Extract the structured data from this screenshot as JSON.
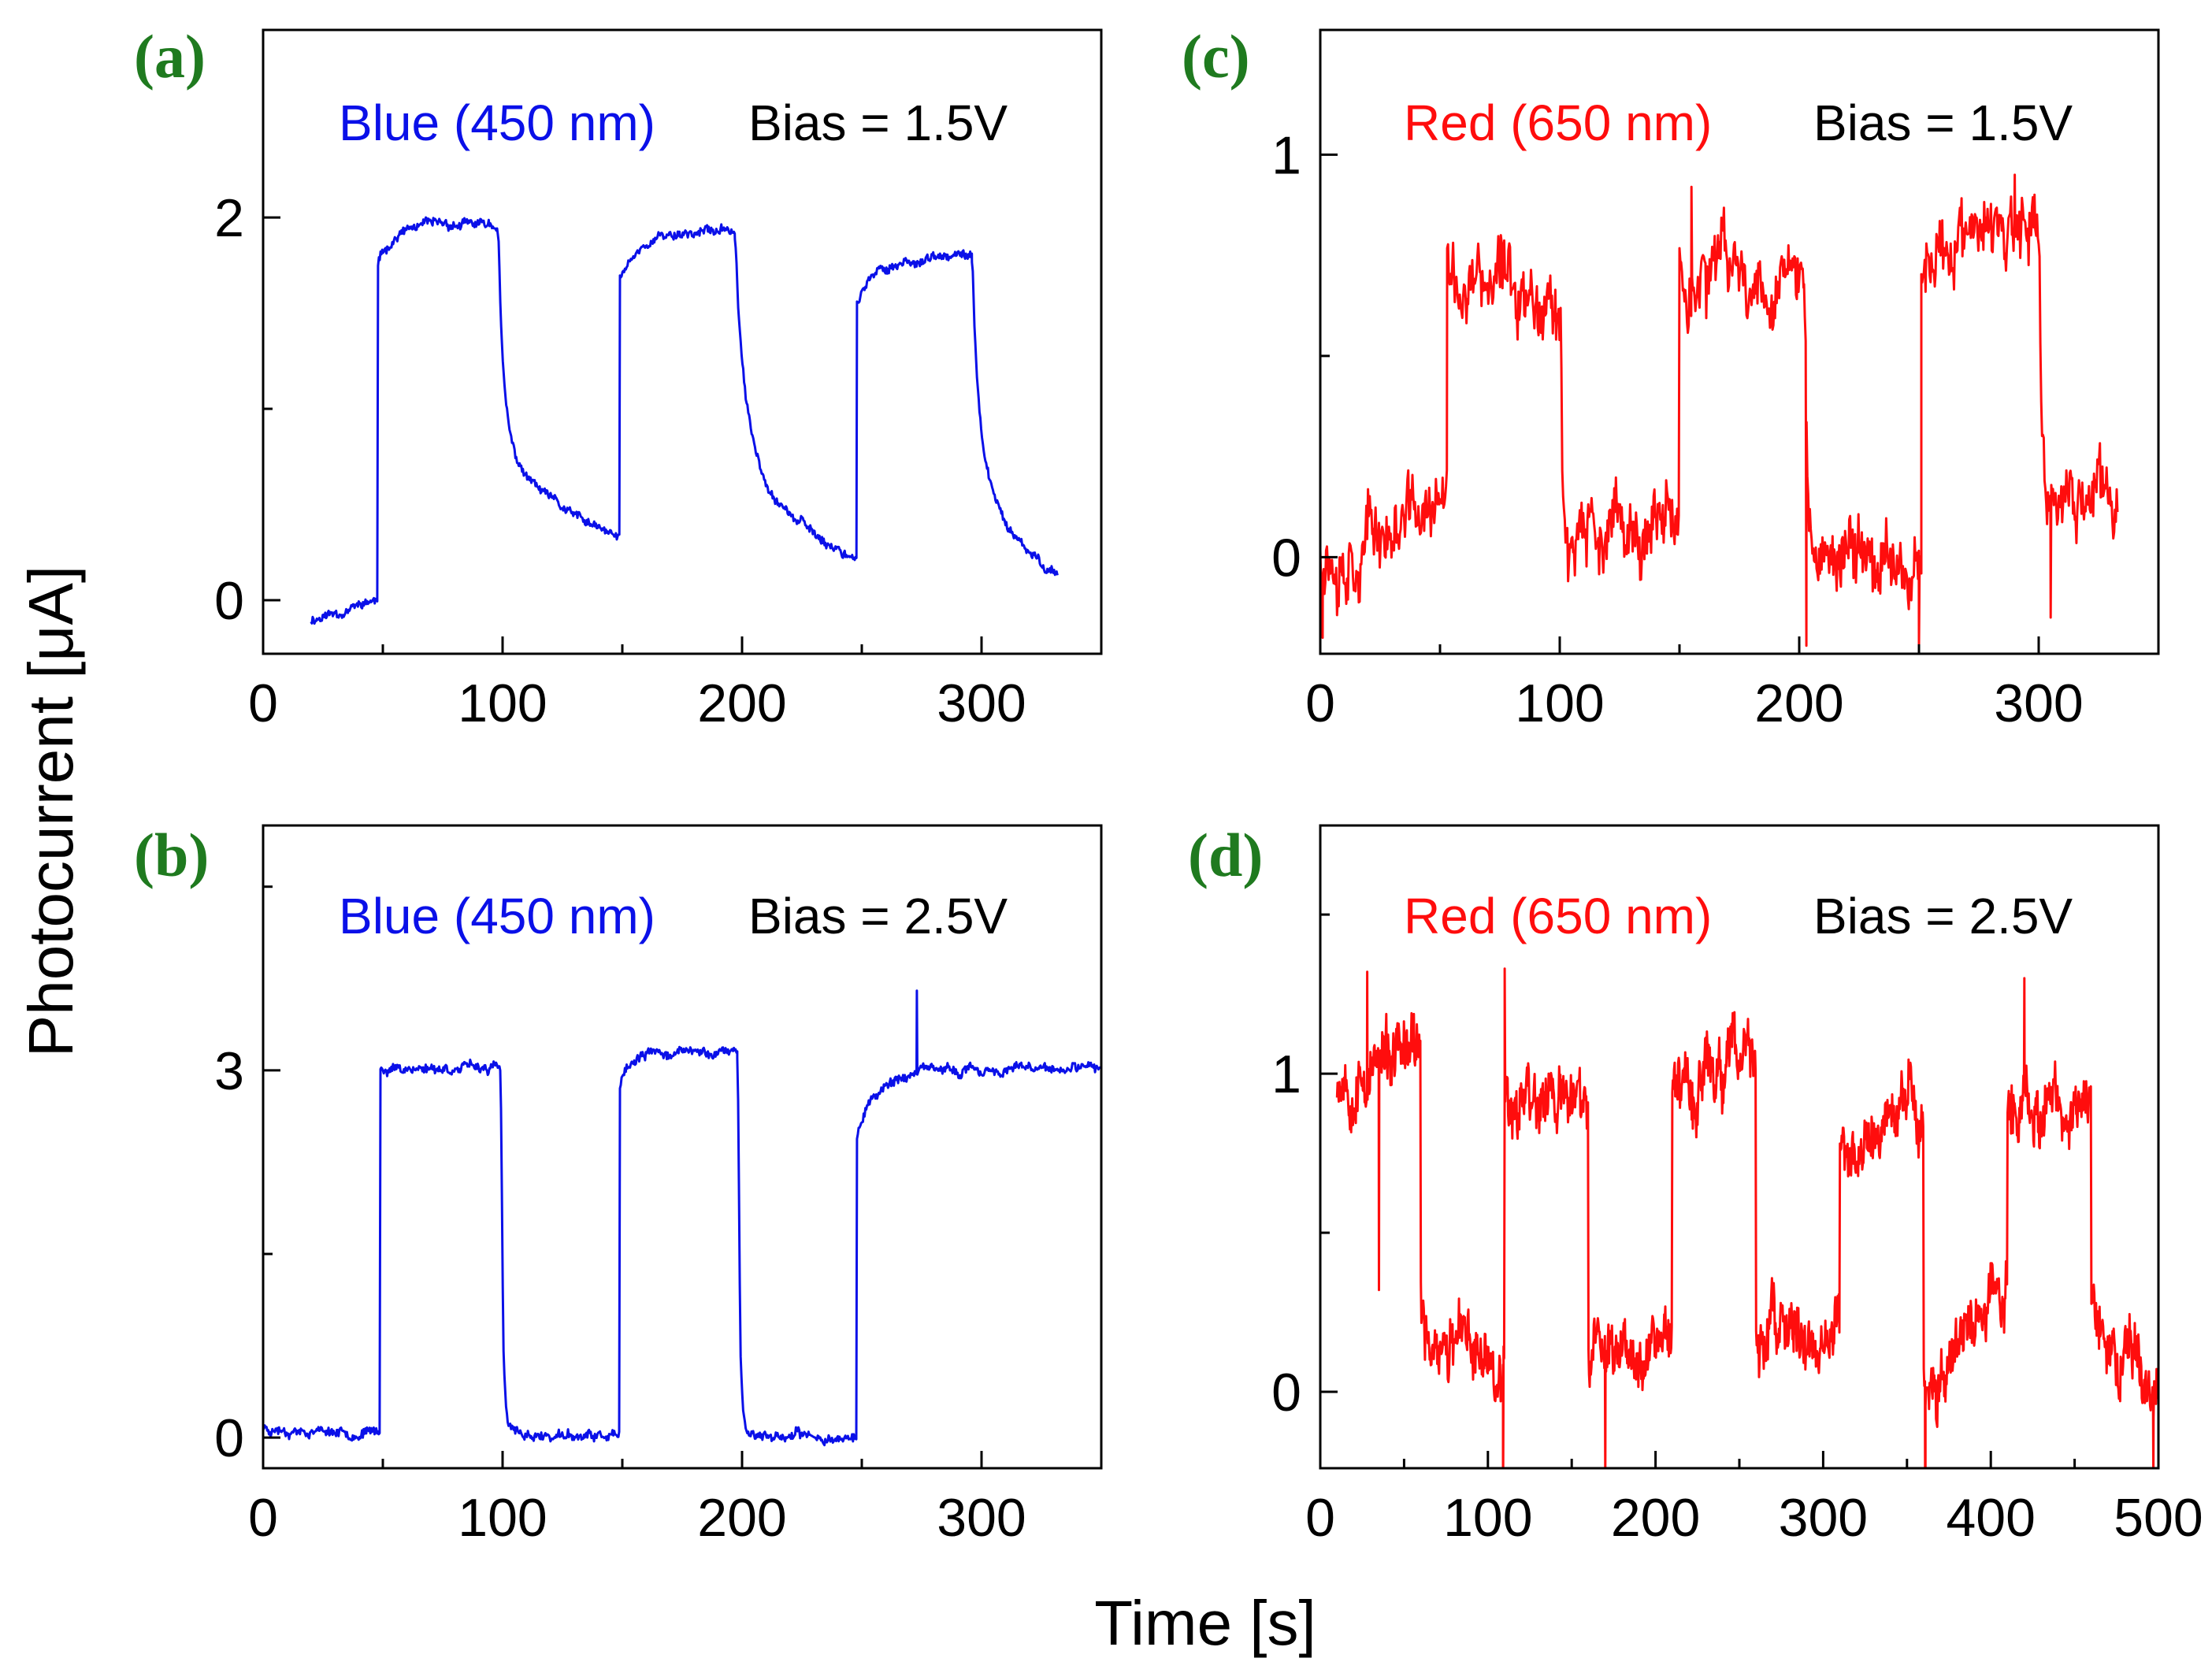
{
  "figure": {
    "ylabel": "Photocurrent [μA]",
    "xlabel": "Time [s]"
  },
  "colors": {
    "blue": "#0a10e8",
    "red": "#ff0d0d",
    "panel_label": "#1f7a1f",
    "axis": "#000000"
  },
  "chart_data": [
    {
      "id": "a",
      "panel_label": "(a)",
      "type": "line",
      "legend_wavelength": "Blue (450 nm)",
      "legend_bias": "Bias = 1.5V",
      "series_color": "blue",
      "xlim": [
        0,
        350
      ],
      "ylim": [
        -0.28,
        2.98
      ],
      "xticks": [
        0,
        100,
        200,
        300
      ],
      "xminor": [
        50,
        150,
        250
      ],
      "yticks": [
        0,
        2
      ],
      "yminor": [
        1
      ],
      "noise": 0.022,
      "seed": 11,
      "segments": [
        {
          "t0": 20,
          "t1": 48,
          "type": "flat",
          "v0": -0.1,
          "v1": 0.0
        },
        {
          "t0": 48,
          "t1": 98,
          "type": "rise",
          "base": 0.0,
          "target": 1.96,
          "a": 0.78,
          "jump": 0.89,
          "tau": 6
        },
        {
          "t0": 98,
          "t1": 149,
          "type": "fall",
          "start": 1.93,
          "drop_to": 0.82,
          "target": 0.05,
          "a": 0.62,
          "tau1": 2.5,
          "tau2": 40
        },
        {
          "t0": 149,
          "t1": 197,
          "type": "rise",
          "base": 0.06,
          "target": 1.93,
          "a": 0.8,
          "jump": 0.86,
          "tau": 8
        },
        {
          "t0": 197,
          "t1": 248,
          "type": "fall",
          "start": 1.9,
          "drop_to": 0.9,
          "target": -0.02,
          "a": 0.55,
          "tau1": 4,
          "tau2": 30
        },
        {
          "t0": 248,
          "t1": 296,
          "type": "rise",
          "base": -0.02,
          "target": 1.79,
          "a": 0.83,
          "jump": 0.88,
          "tau": 9
        },
        {
          "t0": 296,
          "t1": 332,
          "type": "fall",
          "start": 1.77,
          "drop_to": 0.9,
          "target": -0.02,
          "a": 0.5,
          "tau1": 3,
          "tau2": 15
        }
      ],
      "spikes": []
    },
    {
      "id": "b",
      "panel_label": "(b)",
      "type": "line",
      "legend_wavelength": "Blue (450 nm)",
      "legend_bias": "Bias = 2.5V",
      "series_color": "blue",
      "xlim": [
        0,
        350
      ],
      "ylim": [
        -0.25,
        5.0
      ],
      "xticks": [
        0,
        100,
        200,
        300
      ],
      "xminor": [
        50,
        150,
        250
      ],
      "yticks": [
        0,
        3
      ],
      "yminor": [
        1.5,
        4.5
      ],
      "noise": 0.035,
      "seed": 23,
      "segments": [
        {
          "t0": 0,
          "t1": 49,
          "type": "flat",
          "v0": 0.08,
          "v1": 0.04
        },
        {
          "t0": 49,
          "t1": 99,
          "type": "rise",
          "base": 0.05,
          "target": 3.02,
          "a": 1.0,
          "jump": 0.99,
          "tau": 1
        },
        {
          "t0": 99,
          "t1": 149,
          "type": "fall",
          "start": 3.0,
          "drop_to": 0.05,
          "target": 0.0,
          "a": 0.0,
          "tau1": 1,
          "tau2": 10
        },
        {
          "t0": 149,
          "t1": 198,
          "type": "rise",
          "base": 0.05,
          "target": 3.15,
          "a": 0.88,
          "jump": 0.9,
          "tau": 5
        },
        {
          "t0": 198,
          "t1": 248,
          "type": "fall",
          "start": 3.12,
          "drop_to": 0.05,
          "target": 0.0,
          "a": 0.0,
          "tau1": 1,
          "tau2": 10
        },
        {
          "t0": 248,
          "t1": 350,
          "type": "rise",
          "base": 0.05,
          "target": 3.0,
          "a": 0.85,
          "jump": 0.82,
          "tau": 8
        }
      ],
      "spikes": [
        {
          "t": 273,
          "v": 3.65
        }
      ]
    },
    {
      "id": "c",
      "panel_label": "(c)",
      "type": "line",
      "legend_wavelength": "Red (650 nm)",
      "legend_bias": "Bias = 1.5V",
      "series_color": "red",
      "xlim": [
        0,
        350
      ],
      "ylim": [
        -0.24,
        1.31
      ],
      "xticks": [
        0,
        100,
        200,
        300
      ],
      "xminor": [
        50,
        150,
        250
      ],
      "yticks": [
        0,
        1
      ],
      "yminor": [
        0.5
      ],
      "noise": 0.075,
      "seed": 37,
      "segments": [
        {
          "t0": 0,
          "t1": 53,
          "type": "flat",
          "v0": 0.02,
          "v1": 0.12
        },
        {
          "t0": 53,
          "t1": 100,
          "type": "rise",
          "base": 0.1,
          "target": 0.67,
          "a": 1.0,
          "jump": 0.98,
          "tau": 2
        },
        {
          "t0": 100,
          "t1": 150,
          "type": "fall",
          "start": 0.67,
          "drop_to": 0.05,
          "target": 0.05,
          "a": 0.0,
          "tau1": 1,
          "tau2": 10
        },
        {
          "t0": 150,
          "t1": 202,
          "type": "rise",
          "base": 0.05,
          "target": 0.7,
          "a": 1.0,
          "jump": 0.98,
          "tau": 2
        },
        {
          "t0": 202,
          "t1": 251,
          "type": "fall",
          "start": 0.7,
          "drop_to": 0.0,
          "target": 0.0,
          "a": 0.0,
          "tau1": 1,
          "tau2": 10
        },
        {
          "t0": 251,
          "t1": 300,
          "type": "rise",
          "base": 0.0,
          "target": 0.78,
          "a": 1.0,
          "jump": 0.98,
          "tau": 2
        },
        {
          "t0": 300,
          "t1": 333,
          "type": "fall",
          "start": 0.78,
          "drop_to": 0.12,
          "target": 0.15,
          "a": 0.0,
          "tau1": 1,
          "tau2": 10
        }
      ],
      "spikes": [
        {
          "t": 1,
          "v": -0.2
        },
        {
          "t": 203,
          "v": -0.22
        },
        {
          "t": 250,
          "v": -0.22
        },
        {
          "t": 155,
          "v": 0.92
        },
        {
          "t": 290,
          "v": 0.95
        },
        {
          "t": 305,
          "v": -0.15
        }
      ]
    },
    {
      "id": "d",
      "panel_label": "(d)",
      "type": "line",
      "legend_wavelength": "Red (650 nm)",
      "legend_bias": "Bias = 2.5V",
      "series_color": "red",
      "xlim": [
        0,
        500
      ],
      "ylim": [
        -0.24,
        1.78
      ],
      "xticks": [
        0,
        100,
        200,
        300,
        400,
        500
      ],
      "xminor": [
        50,
        150,
        250,
        350,
        450
      ],
      "yticks": [
        0,
        1
      ],
      "yminor": [
        0.5,
        1.5
      ],
      "noise": 0.085,
      "seed": 53,
      "segments": [
        {
          "t0": 10,
          "t1": 60,
          "type": "flat",
          "v0": 1.0,
          "v1": 1.05
        },
        {
          "t0": 60,
          "t1": 110,
          "type": "flat",
          "v0": 0.18,
          "v1": 0.1
        },
        {
          "t0": 110,
          "t1": 160,
          "type": "flat",
          "v0": 0.95,
          "v1": 0.9
        },
        {
          "t0": 160,
          "t1": 210,
          "type": "flat",
          "v0": 0.1,
          "v1": 0.22
        },
        {
          "t0": 210,
          "t1": 260,
          "type": "flat",
          "v0": 0.95,
          "v1": 1.05
        },
        {
          "t0": 260,
          "t1": 310,
          "type": "flat",
          "v0": 0.18,
          "v1": 0.15
        },
        {
          "t0": 310,
          "t1": 360,
          "type": "flat",
          "v0": 0.72,
          "v1": 0.9
        },
        {
          "t0": 360,
          "t1": 410,
          "type": "flat",
          "v0": 0.0,
          "v1": 0.35
        },
        {
          "t0": 410,
          "t1": 460,
          "type": "flat",
          "v0": 0.95,
          "v1": 0.85
        },
        {
          "t0": 460,
          "t1": 500,
          "type": "flat",
          "v0": 0.2,
          "v1": 0.05
        }
      ],
      "spikes": [
        {
          "t": 35,
          "v": 0.32
        },
        {
          "t": 109,
          "v": -0.38
        },
        {
          "t": 361,
          "v": -0.82
        },
        {
          "t": 110,
          "v": 1.33
        },
        {
          "t": 28,
          "v": 1.32
        },
        {
          "t": 170,
          "v": -0.28
        },
        {
          "t": 497,
          "v": -0.28
        },
        {
          "t": 420,
          "v": 1.3
        }
      ]
    }
  ]
}
